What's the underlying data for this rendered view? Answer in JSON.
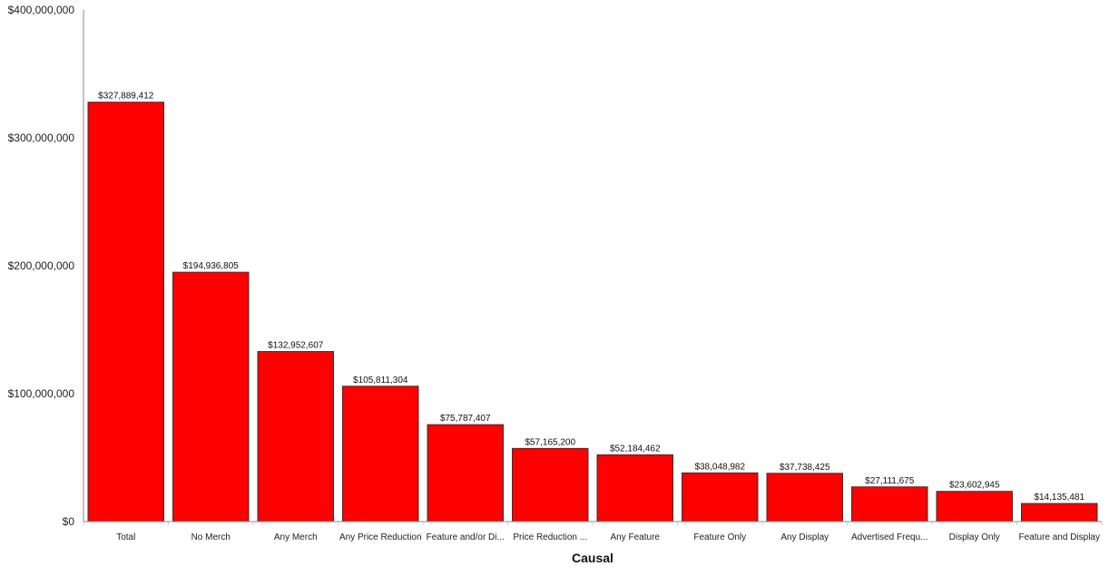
{
  "chart_data": {
    "type": "bar",
    "xlabel": "Causal",
    "ylabel": "",
    "ylim": [
      0,
      400000000
    ],
    "y_ticks": [
      "$0",
      "$100,000,000",
      "$200,000,000",
      "$300,000,000",
      "$400,000,000"
    ],
    "y_tick_values": [
      0,
      100000000,
      200000000,
      300000000,
      400000000
    ],
    "categories": [
      "Total",
      "No Merch",
      "Any Merch",
      "Any Price Reduction",
      "Feature and/or Di...",
      "Price Reduction ...",
      "Any Feature",
      "Feature Only",
      "Any Display",
      "Advertised Frequ...",
      "Display Only",
      "Feature and Display"
    ],
    "values": [
      327889412,
      194936805,
      132952607,
      105811304,
      75787407,
      57165200,
      52184462,
      38048982,
      37738425,
      27111675,
      23602945,
      14135481
    ],
    "data_labels": [
      "$327,889,412",
      "$194,936,805",
      "$132,952,607",
      "$105,811,304",
      "$75,787,407",
      "$57,165,200",
      "$52,184,462",
      "$38,048,982",
      "$37,738,425",
      "$27,111,675",
      "$23,602,945",
      "$14,135,481"
    ],
    "colors": {
      "bar": "#ff0000",
      "bar_border": "#333333",
      "axis": "#888888"
    },
    "grid": false,
    "legend": "none"
  }
}
